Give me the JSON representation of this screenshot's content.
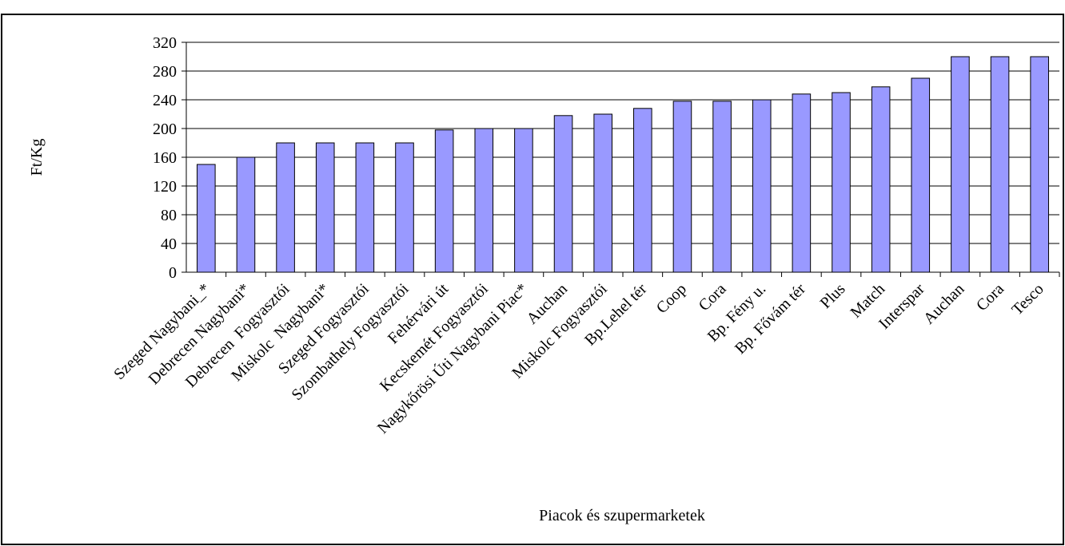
{
  "chart_data": {
    "type": "bar",
    "title": "",
    "xlabel": "Piacok és szupermarketek",
    "ylabel": "Ft/Kg",
    "ylim": [
      0,
      320
    ],
    "yticks": [
      0,
      40,
      80,
      120,
      160,
      200,
      240,
      280,
      320
    ],
    "grid": true,
    "legend": "none",
    "bar_color": "#9999ff",
    "categories": [
      "Szeged Nagybani_*",
      "Debrecen Nagybani*",
      "Debrecen  Fogyasztói",
      "Miskolc  Nagybani*",
      "Szeged Fogyasztói",
      "Szombathely Fogyasztói",
      "Fehérvári út",
      "Kecskemét Fogyasztói",
      "Nagykőrösi Úti Nagybani Piac*",
      "Auchan",
      "Miskolc Fogyasztói",
      "Bp.Lehel tér",
      "Coop",
      "Cora",
      "Bp. Fény u.",
      "Bp. Fővám tér",
      "Plus",
      "Match",
      "Interspar",
      "Auchan",
      "Cora",
      "Tesco"
    ],
    "values": [
      150,
      160,
      180,
      180,
      180,
      180,
      198,
      200,
      200,
      218,
      220,
      228,
      238,
      238,
      240,
      248,
      250,
      258,
      270,
      300,
      300,
      300
    ]
  }
}
